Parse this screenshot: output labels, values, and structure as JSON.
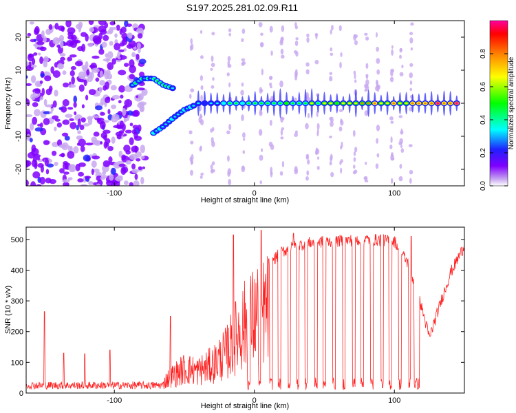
{
  "title": "S197.2025.281.02.09.R11",
  "chart_data": [
    {
      "type": "heatmap",
      "name": "spectrogram",
      "xlabel": "Height of straight line (km)",
      "ylabel": "Frequency (Hz)",
      "xlim": [
        -163,
        150
      ],
      "ylim": [
        -25,
        25
      ],
      "xticks": [
        -100,
        0,
        100
      ],
      "xtick_labels": [
        "-100",
        "0",
        "100"
      ],
      "yticks": [
        -20,
        -10,
        0,
        10,
        20
      ],
      "ytick_labels": [
        "-20",
        "-10",
        "0",
        "10",
        "20"
      ],
      "colorbar": {
        "label": "Normalized spectral amplitude",
        "range": [
          0,
          1
        ],
        "ticks": [
          0.0,
          0.2,
          0.4,
          0.6,
          0.8
        ],
        "tick_labels": [
          "0.0",
          "0.2",
          "0.4",
          "0.6",
          "0.8"
        ],
        "colormap": [
          "#ffffff",
          "#c8a8f0",
          "#8000ff",
          "#2020ff",
          "#00ffff",
          "#00ff00",
          "#ffff00",
          "#ff8000",
          "#ff0000",
          "#ff00a0"
        ]
      },
      "ridges": [
        {
          "description": "upper branch",
          "points": [
            [
              -87,
              5.5
            ],
            [
              -80,
              7.5
            ],
            [
              -72,
              7.5
            ],
            [
              -65,
              5.5
            ],
            [
              -58,
              4.5
            ]
          ],
          "amplitude": 0.35
        },
        {
          "description": "lower branch",
          "points": [
            [
              -72,
              -9
            ],
            [
              -65,
              -7
            ],
            [
              -58,
              -4.5
            ],
            [
              -50,
              -2
            ],
            [
              -42,
              -0.5
            ]
          ],
          "amplitude": 0.3
        },
        {
          "description": "main carrier",
          "points": [
            [
              -40,
              0
            ],
            [
              0,
              0
            ],
            [
              50,
              0
            ],
            [
              100,
              0
            ],
            [
              148,
              0
            ]
          ],
          "amplitude_start": 0.25,
          "amplitude_end": 0.9
        }
      ]
    },
    {
      "type": "line",
      "name": "snr",
      "xlabel": "Height of straight line (km)",
      "ylabel": "SNR (10 * v/v)",
      "xlim": [
        -163,
        150
      ],
      "ylim": [
        0,
        540
      ],
      "xticks": [
        -100,
        0,
        100
      ],
      "xtick_labels": [
        "-100",
        "0",
        "100"
      ],
      "yticks": [
        0,
        100,
        200,
        300,
        400,
        500
      ],
      "ytick_labels": [
        "0",
        "100",
        "200",
        "300",
        "400",
        "500"
      ],
      "color": "#ff2020",
      "baseline_level": 25,
      "spikes": [
        [
          -150,
          265
        ],
        [
          -136,
          130
        ],
        [
          -121,
          128
        ],
        [
          -103,
          140
        ],
        [
          -60,
          250
        ],
        [
          -15,
          515
        ],
        [
          5,
          530
        ],
        [
          28,
          520
        ],
        [
          60,
          510
        ],
        [
          90,
          515
        ],
        [
          112,
          510
        ]
      ],
      "envelope": [
        [
          -163,
          25
        ],
        [
          -70,
          30
        ],
        [
          -60,
          80
        ],
        [
          -50,
          120
        ],
        [
          -40,
          110
        ],
        [
          -30,
          140
        ],
        [
          -20,
          200
        ],
        [
          -10,
          320
        ],
        [
          0,
          380
        ],
        [
          10,
          420
        ],
        [
          20,
          460
        ],
        [
          30,
          480
        ],
        [
          40,
          490
        ],
        [
          60,
          495
        ],
        [
          80,
          500
        ],
        [
          100,
          495
        ],
        [
          110,
          420
        ],
        [
          120,
          270
        ],
        [
          125,
          180
        ],
        [
          132,
          280
        ],
        [
          140,
          390
        ],
        [
          150,
          480
        ]
      ],
      "dropouts": [
        [
          -5,
          -3
        ],
        [
          3,
          5
        ],
        [
          11,
          13
        ],
        [
          17,
          19
        ],
        [
          24,
          26
        ],
        [
          30,
          32
        ],
        [
          36,
          38
        ],
        [
          43,
          45
        ],
        [
          49,
          51
        ],
        [
          56,
          58
        ],
        [
          63,
          65
        ],
        [
          70,
          72
        ],
        [
          76,
          78
        ],
        [
          83,
          85
        ],
        [
          90,
          92
        ],
        [
          96,
          98
        ],
        [
          103,
          105
        ],
        [
          110,
          112
        ],
        [
          114,
          118
        ]
      ]
    }
  ]
}
